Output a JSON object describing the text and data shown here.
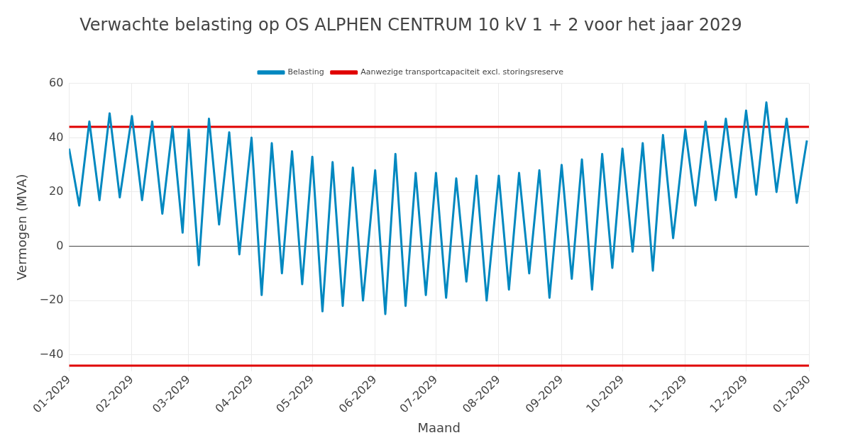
{
  "chart_data": {
    "type": "line",
    "title": "Verwachte belasting op OS ALPHEN CENTRUM 10 kV 1 + 2 voor het jaar 2029",
    "xlabel": "Maand",
    "ylabel": "Vermogen (MVA)",
    "xlim": [
      "2029-01-01",
      "2030-01-01"
    ],
    "xticks": [
      {
        "value": "2029-01",
        "label": "01-2029"
      },
      {
        "value": "2029-02",
        "label": "02-2029"
      },
      {
        "value": "2029-03",
        "label": "03-2029"
      },
      {
        "value": "2029-04",
        "label": "04-2029"
      },
      {
        "value": "2029-05",
        "label": "05-2029"
      },
      {
        "value": "2029-06",
        "label": "06-2029"
      },
      {
        "value": "2029-07",
        "label": "07-2029"
      },
      {
        "value": "2029-08",
        "label": "08-2029"
      },
      {
        "value": "2029-09",
        "label": "09-2029"
      },
      {
        "value": "2029-10",
        "label": "10-2029"
      },
      {
        "value": "2029-11",
        "label": "11-2029"
      },
      {
        "value": "2029-12",
        "label": "12-2029"
      },
      {
        "value": "2030-01",
        "label": "01-2030"
      }
    ],
    "ylim": [
      -46,
      60
    ],
    "yticks": [
      {
        "value": -40,
        "label": "−40"
      },
      {
        "value": -20,
        "label": "−20"
      },
      0,
      20,
      40,
      60
    ],
    "grid": true,
    "legend": "top",
    "marker": "none",
    "line_style": "solid",
    "ref_lines": [
      {
        "axis": "y",
        "value": 0,
        "color": "#444444"
      }
    ],
    "series": [
      {
        "name": "Belasting",
        "color": "#0088c0",
        "x": [
          "2029-01-01",
          "2029-01-06",
          "2029-01-11",
          "2029-01-16",
          "2029-01-21",
          "2029-01-26",
          "2029-02-01",
          "2029-02-06",
          "2029-02-11",
          "2029-02-16",
          "2029-02-21",
          "2029-02-26",
          "2029-03-01",
          "2029-03-06",
          "2029-03-11",
          "2029-03-16",
          "2029-03-21",
          "2029-03-26",
          "2029-04-01",
          "2029-04-06",
          "2029-04-11",
          "2029-04-16",
          "2029-04-21",
          "2029-04-26",
          "2029-05-01",
          "2029-05-06",
          "2029-05-11",
          "2029-05-16",
          "2029-05-21",
          "2029-05-26",
          "2029-06-01",
          "2029-06-06",
          "2029-06-11",
          "2029-06-16",
          "2029-06-21",
          "2029-06-26",
          "2029-07-01",
          "2029-07-06",
          "2029-07-11",
          "2029-07-16",
          "2029-07-21",
          "2029-07-26",
          "2029-08-01",
          "2029-08-06",
          "2029-08-11",
          "2029-08-16",
          "2029-08-21",
          "2029-08-26",
          "2029-09-01",
          "2029-09-06",
          "2029-09-11",
          "2029-09-16",
          "2029-09-21",
          "2029-09-26",
          "2029-10-01",
          "2029-10-06",
          "2029-10-11",
          "2029-10-16",
          "2029-10-21",
          "2029-10-26",
          "2029-11-01",
          "2029-11-06",
          "2029-11-11",
          "2029-11-16",
          "2029-11-21",
          "2029-11-26",
          "2029-12-01",
          "2029-12-06",
          "2029-12-11",
          "2029-12-16",
          "2029-12-21",
          "2029-12-26",
          "2029-12-31"
        ],
        "values": [
          36,
          15,
          46,
          17,
          49,
          18,
          48,
          17,
          46,
          12,
          44,
          5,
          43,
          -7,
          47,
          8,
          42,
          -3,
          40,
          -18,
          38,
          -10,
          35,
          -14,
          33,
          -24,
          31,
          -22,
          29,
          -20,
          28,
          -25,
          34,
          -22,
          27,
          -18,
          27,
          -19,
          25,
          -13,
          26,
          -20,
          26,
          -16,
          27,
          -10,
          28,
          -19,
          30,
          -12,
          32,
          -16,
          34,
          -8,
          36,
          -2,
          38,
          -9,
          41,
          3,
          43,
          15,
          46,
          17,
          47,
          18,
          50,
          19,
          53,
          20,
          47,
          16,
          39
        ]
      },
      {
        "name": "Aanwezige transportcapaciteit excl. storingsreserve",
        "color": "#e00000",
        "x": [
          "2029-01-01",
          "2030-01-01"
        ],
        "values": [
          44,
          44
        ]
      },
      {
        "color": "#e00000",
        "x": [
          "2029-01-01",
          "2030-01-01"
        ],
        "values": [
          -44,
          -44
        ]
      }
    ]
  }
}
